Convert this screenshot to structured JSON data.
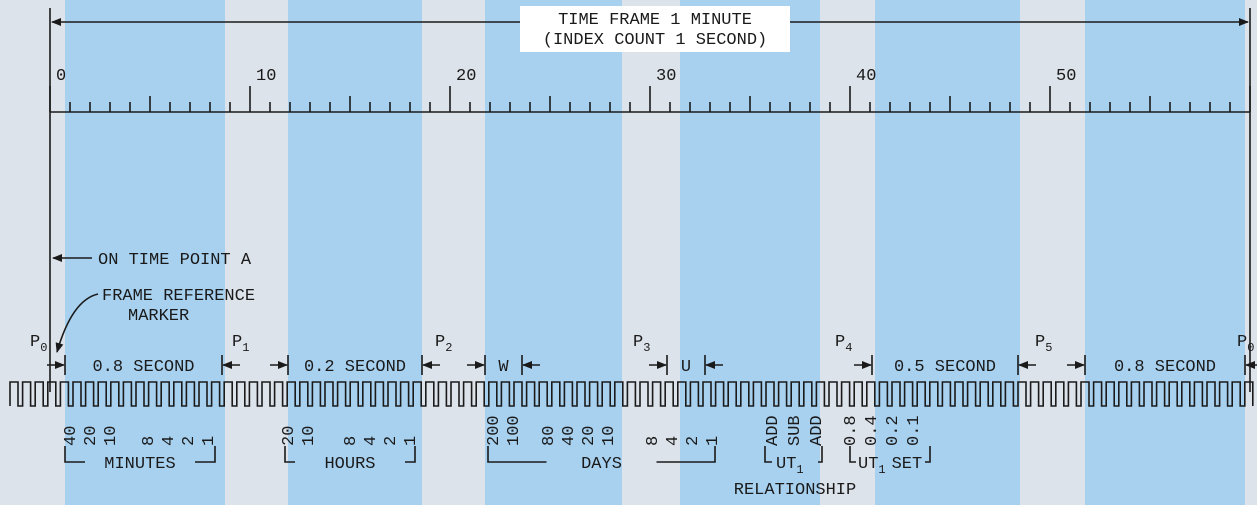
{
  "header": {
    "title": "TIME FRAME 1 MINUTE",
    "subtitle": "(INDEX COUNT 1 SECOND)"
  },
  "scale": {
    "labels": [
      "0",
      "10",
      "20",
      "30",
      "40",
      "50"
    ]
  },
  "annotations": {
    "on_time": "ON TIME POINT A",
    "frame_ref": [
      "FRAME REFERENCE",
      "MARKER"
    ]
  },
  "position_markers": [
    {
      "label": "P",
      "sub": "0"
    },
    {
      "label": "P",
      "sub": "1"
    },
    {
      "label": "P",
      "sub": "2"
    },
    {
      "label": "P",
      "sub": "3"
    },
    {
      "label": "P",
      "sub": "4"
    },
    {
      "label": "P",
      "sub": "5"
    },
    {
      "label": "P",
      "sub": "0"
    }
  ],
  "intervals": [
    "0.8 SECOND",
    "0.2 SECOND",
    "W",
    "U",
    "0.5 SECOND",
    "0.8 SECOND"
  ],
  "bit_weights": [
    [
      "40",
      "20",
      "10"
    ],
    [
      "8",
      "4",
      "2",
      "1"
    ],
    [
      "20",
      "10"
    ],
    [
      "8",
      "4",
      "2",
      "1"
    ],
    [
      "200",
      "100"
    ],
    [
      "80",
      "40",
      "20",
      "10"
    ],
    [
      "8",
      "4",
      "2",
      "1"
    ],
    [
      "ADD",
      "SUB",
      "ADD"
    ],
    [
      "0.8",
      "0.4",
      "0.2",
      "0.1"
    ]
  ],
  "groups": [
    "MINUTES",
    "HOURS",
    "DAYS"
  ],
  "ut1": {
    "label": "UT",
    "sub": "1",
    "set": "SET",
    "relationship": "RELATIONSHIP"
  }
}
